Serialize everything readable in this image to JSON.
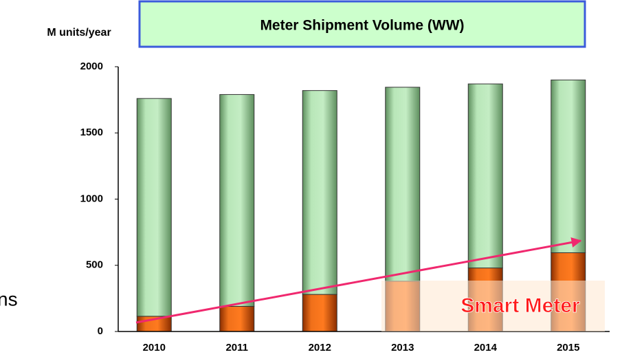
{
  "chart_data": {
    "type": "stacked_bar",
    "title": "Meter Shipment Volume (WW)",
    "y_axis_label": "M units/year",
    "annotation": "Smart Meter",
    "side_text": "ns",
    "categories": [
      "2010",
      "2011",
      "2012",
      "2013",
      "2014",
      "2015"
    ],
    "series": [
      {
        "name": "Smart Meter",
        "color": "#e8620f",
        "values": [
          115,
          190,
          280,
          380,
          480,
          595
        ]
      },
      {
        "color": "#a8dba8",
        "values": [
          1645,
          1600,
          1540,
          1465,
          1390,
          1305
        ]
      }
    ],
    "ylim": [
      0,
      2000
    ],
    "yticks": [
      0,
      500,
      1000,
      1500,
      2000
    ],
    "grid": false
  }
}
